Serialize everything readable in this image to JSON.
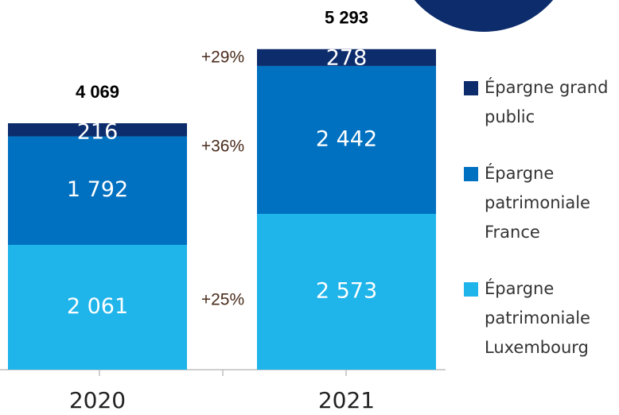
{
  "chart_data": {
    "type": "stacked-bar",
    "categories": [
      "2020",
      "2021"
    ],
    "series": [
      {
        "name": "Épargne patrimoniale Luxembourg",
        "color": "#1fb4ea",
        "values": [
          2061,
          2573
        ],
        "value_labels": [
          "2 061",
          "2 573"
        ]
      },
      {
        "name": "Épargne patrimoniale France",
        "color": "#0070c0",
        "values": [
          1792,
          2442
        ],
        "value_labels": [
          "1 792",
          "2 442"
        ]
      },
      {
        "name": "Épargne grand public",
        "color": "#0d2c6c",
        "values": [
          216,
          278
        ],
        "value_labels": [
          "216",
          "278"
        ]
      }
    ],
    "totals": {
      "values": [
        4069,
        5293
      ],
      "value_labels": [
        "4 069",
        "5 293"
      ]
    },
    "annotations": [
      "+29%",
      "+36%",
      "+25%"
    ],
    "ylim": [
      0,
      5500
    ]
  }
}
